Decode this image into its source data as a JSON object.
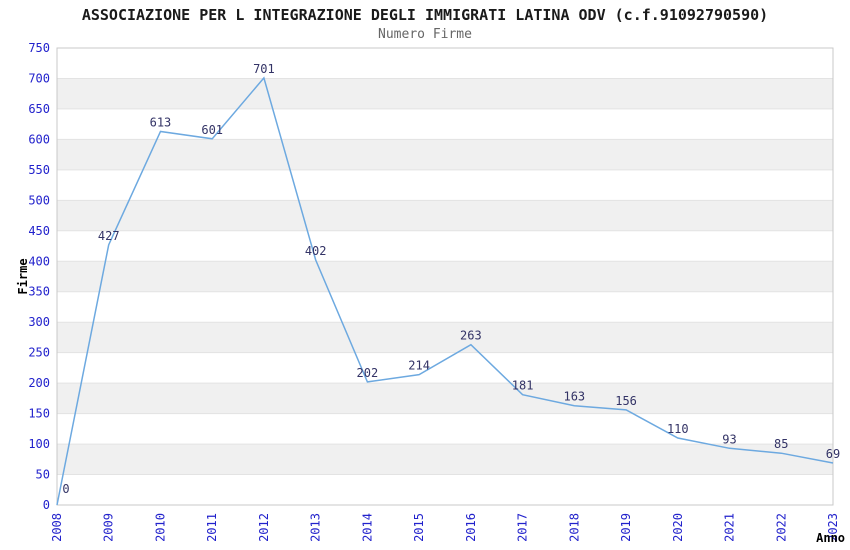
{
  "chart_data": {
    "type": "line",
    "title": "ASSOCIAZIONE PER L INTEGRAZIONE DEGLI IMMIGRATI LATINA ODV (c.f.91092790590)",
    "subtitle": "Numero Firme",
    "xlabel": "Anno",
    "ylabel": "Firme",
    "categories": [
      "2008",
      "2009",
      "2010",
      "2011",
      "2012",
      "2013",
      "2014",
      "2015",
      "2016",
      "2017",
      "2018",
      "2019",
      "2020",
      "2021",
      "2022",
      "2023"
    ],
    "values": [
      0,
      427,
      613,
      601,
      701,
      402,
      202,
      214,
      263,
      181,
      163,
      156,
      110,
      93,
      85,
      69
    ],
    "ylim": [
      0,
      750
    ],
    "ytick_step": 50,
    "grid": true,
    "legend": "none",
    "colors": {
      "line": "#6da9e0",
      "tick_label": "#2222cc",
      "data_label": "#333366",
      "band": "#f0f0f0",
      "grid": "#e3e3e3",
      "border": "#c9c9c9",
      "axis_title": "#000000"
    }
  }
}
